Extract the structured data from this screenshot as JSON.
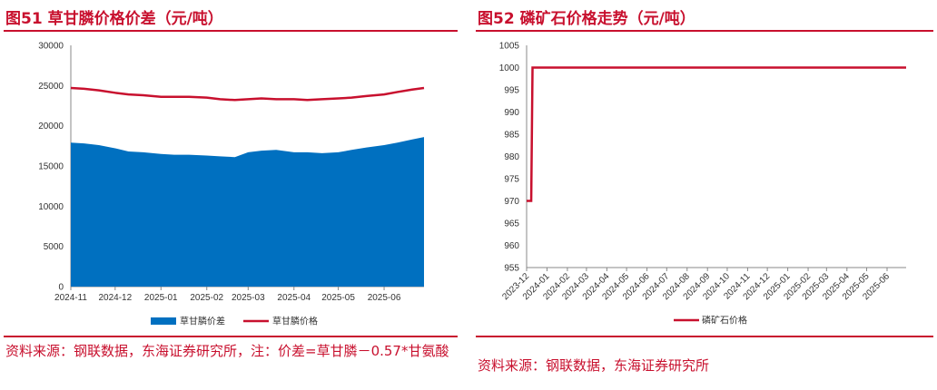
{
  "left": {
    "title": "图51  草甘膦价格价差（元/吨）",
    "source": "资料来源：钢联数据，东海证券研究所，注：价差=草甘膦－0.57*甘氨酸",
    "chart_data": {
      "type": "area",
      "title": "图51  草甘膦价格价差（元/吨）",
      "x": [
        "2024-11-01",
        "2024-11-10",
        "2024-11-20",
        "2024-12-01",
        "2024-12-10",
        "2024-12-20",
        "2025-01-01",
        "2025-01-10",
        "2025-01-20",
        "2025-02-01",
        "2025-02-10",
        "2025-02-20",
        "2025-03-01",
        "2025-03-10",
        "2025-03-20",
        "2025-04-01",
        "2025-04-10",
        "2025-04-20",
        "2025-05-01",
        "2025-05-10",
        "2025-05-20",
        "2025-06-01",
        "2025-06-10",
        "2025-06-20",
        "2025-06-28"
      ],
      "xticks": [
        "2024-11",
        "2024-12",
        "2025-01",
        "2025-02",
        "2025-03",
        "2025-04",
        "2025-05",
        "2025-06"
      ],
      "ylim": [
        0,
        30000
      ],
      "yticks": [
        0,
        5000,
        10000,
        15000,
        20000,
        25000,
        30000
      ],
      "series": [
        {
          "name": "草甘膦价差",
          "kind": "area",
          "color": "#0070c0",
          "values": [
            17900,
            17800,
            17600,
            17200,
            16800,
            16700,
            16500,
            16400,
            16400,
            16300,
            16200,
            16100,
            16700,
            16900,
            17000,
            16700,
            16700,
            16600,
            16700,
            17000,
            17300,
            17600,
            17900,
            18300,
            18600
          ]
        },
        {
          "name": "草甘膦价格",
          "kind": "line",
          "color": "#c8102e",
          "values": [
            24700,
            24600,
            24400,
            24100,
            23900,
            23800,
            23600,
            23600,
            23600,
            23500,
            23300,
            23200,
            23300,
            23400,
            23300,
            23300,
            23200,
            23300,
            23400,
            23500,
            23700,
            23900,
            24200,
            24500,
            24700
          ]
        }
      ],
      "legend": "bottom"
    }
  },
  "right": {
    "title": "图52  磷矿石价格走势（元/吨）",
    "source": "资料来源：钢联数据，东海证券研究所",
    "chart_data": {
      "type": "line",
      "title": "图52  磷矿石价格走势（元/吨）",
      "xticks": [
        "2023-12",
        "2024-01",
        "2024-02",
        "2024-03",
        "2024-04",
        "2024-05",
        "2024-06",
        "2024-07",
        "2024-08",
        "2024-09",
        "2024-10",
        "2024-11",
        "2024-12",
        "2025-01",
        "2025-02",
        "2025-03",
        "2025-04",
        "2025-05",
        "2025-06"
      ],
      "ylim": [
        955,
        1005
      ],
      "yticks": [
        955,
        960,
        965,
        970,
        975,
        980,
        985,
        990,
        995,
        1000,
        1005
      ],
      "series": [
        {
          "name": "磷矿石价格",
          "color": "#c8102e",
          "points": [
            [
              "2023-12-01",
              970
            ],
            [
              "2023-12-08",
              970
            ],
            [
              "2023-12-10",
              1000
            ],
            [
              "2025-06-30",
              1000
            ]
          ]
        }
      ],
      "legend": "bottom"
    }
  }
}
